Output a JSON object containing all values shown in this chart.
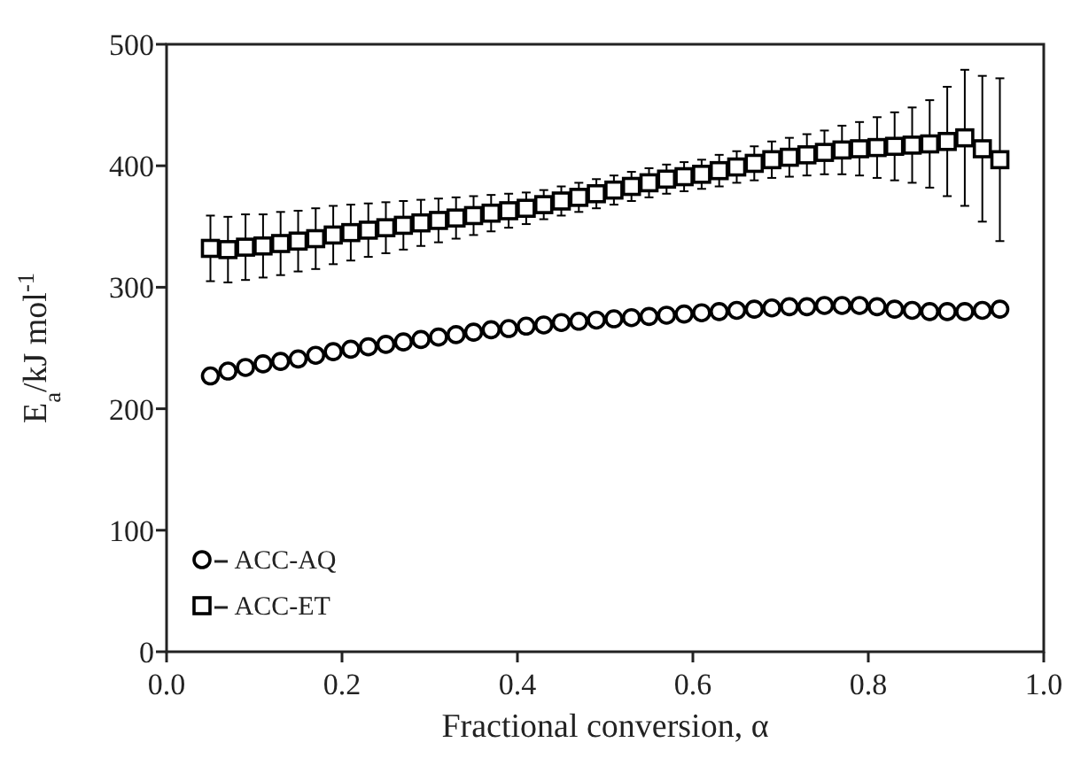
{
  "chart_data": {
    "type": "scatter",
    "xlabel": "Fractional conversion, α",
    "ylabel": "E$_{a}$/kJ mol$^{-1}$",
    "xlim": [
      0,
      1
    ],
    "xticks": [
      {
        "value": 0,
        "label": "0.0"
      },
      0.2,
      0.4,
      0.6,
      0.8,
      {
        "value": 1,
        "label": "1.0"
      }
    ],
    "ylim": [
      0,
      500
    ],
    "yticks": [
      0,
      100,
      200,
      300,
      400,
      500
    ],
    "grid": false,
    "legend": "bottom left",
    "x": [
      0.05,
      0.07,
      0.09,
      0.11,
      0.13,
      0.15,
      0.17,
      0.19,
      0.21,
      0.23,
      0.25,
      0.27,
      0.29,
      0.31,
      0.33,
      0.35,
      0.37,
      0.39,
      0.41,
      0.43,
      0.45,
      0.47,
      0.49,
      0.51,
      0.53,
      0.55,
      0.57,
      0.59,
      0.61,
      0.63,
      0.65,
      0.67,
      0.69,
      0.71,
      0.73,
      0.75,
      0.77,
      0.79,
      0.81,
      0.83,
      0.85,
      0.87,
      0.89,
      0.91,
      0.93,
      0.95
    ],
    "series": [
      {
        "name": "ACC-AQ",
        "color": "#000000",
        "marker": "circle",
        "values": [
          227,
          231,
          234,
          237,
          239,
          241,
          244,
          247,
          249,
          251,
          253,
          255,
          257,
          259,
          261,
          263,
          265,
          266,
          268,
          269,
          271,
          272,
          273,
          274,
          275,
          276,
          277,
          278,
          279,
          280,
          281,
          282,
          283,
          284,
          284,
          285,
          285,
          285,
          284,
          282,
          281,
          280,
          280,
          280,
          281,
          282
        ]
      },
      {
        "name": "ACC-ET",
        "color": "#000000",
        "marker": "square",
        "values": [
          332,
          331,
          333,
          334,
          336,
          338,
          340,
          343,
          345,
          347,
          349,
          351,
          353,
          355,
          357,
          359,
          361,
          363,
          365,
          368,
          371,
          374,
          377,
          380,
          383,
          386,
          389,
          391,
          393,
          396,
          399,
          402,
          405,
          407,
          409,
          411,
          413,
          414,
          415,
          416,
          417,
          418,
          420,
          423,
          414,
          405
        ],
        "errors": [
          27,
          27,
          27,
          26,
          26,
          25,
          25,
          24,
          23,
          22,
          21,
          20,
          19,
          18,
          17,
          16,
          15,
          14,
          13,
          12,
          12,
          12,
          12,
          12,
          12,
          12,
          12,
          12,
          12,
          13,
          13,
          14,
          15,
          16,
          17,
          18,
          20,
          22,
          25,
          28,
          31,
          36,
          45,
          56,
          60,
          67
        ]
      }
    ]
  }
}
